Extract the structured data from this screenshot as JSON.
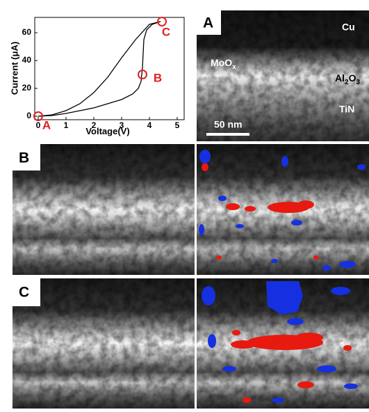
{
  "chart_data": {
    "type": "line",
    "xlabel": "Voltage(V)",
    "ylabel": "Current (μA)",
    "xlim": [
      -0.125,
      5.25
    ],
    "ylim": [
      -2.5,
      71
    ],
    "xticks": [
      0,
      1,
      2,
      3,
      4,
      5
    ],
    "yticks": [
      0,
      20,
      40,
      60
    ],
    "series": [
      {
        "color": "#000000",
        "x": [
          0,
          0.5,
          1,
          1.5,
          2,
          2.5,
          3,
          3.4,
          3.6,
          3.7,
          3.75,
          3.8,
          3.9,
          4.1,
          4.4
        ],
        "values": [
          0,
          0.5,
          2,
          4,
          6,
          9,
          12,
          16,
          20,
          25,
          35,
          55,
          62,
          66,
          68
        ]
      },
      {
        "color": "#000000",
        "x": [
          4.4,
          4,
          3.5,
          3,
          2.5,
          2,
          1.5,
          1,
          0.5,
          0
        ],
        "values": [
          68,
          66,
          55,
          42,
          28,
          17,
          9,
          4,
          1,
          0
        ]
      }
    ],
    "points": [
      {
        "label": "A",
        "x": 0,
        "y": 0,
        "color": "#e02020"
      },
      {
        "label": "B",
        "x": 3.75,
        "y": 30,
        "color": "#e02020"
      },
      {
        "label": "C",
        "x": 4.45,
        "y": 68,
        "color": "#e02020"
      }
    ]
  },
  "panels": [
    {
      "label": "A",
      "annotations": {
        "cu": "Cu",
        "moox": [
          "MoO",
          "x"
        ],
        "al2o3": [
          "Al",
          "2",
          "O",
          "3"
        ],
        "tin": "TiN",
        "scale": "50 nm"
      }
    },
    {
      "label": "B"
    },
    {
      "label": "C"
    }
  ]
}
